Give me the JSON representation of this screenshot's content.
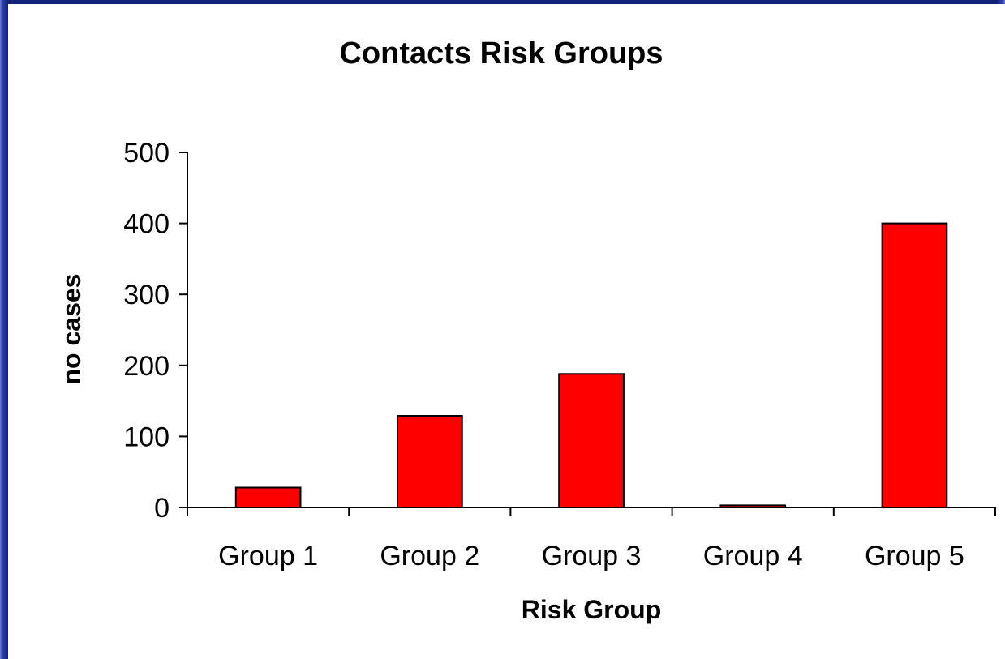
{
  "chart_data": {
    "type": "bar",
    "title": "Contacts Risk Groups",
    "xlabel": "Risk Group",
    "ylabel": "no cases",
    "categories": [
      "Group 1",
      "Group 2",
      "Group 3",
      "Group 4",
      "Group 5"
    ],
    "values": [
      28,
      129,
      188,
      3,
      400
    ],
    "ylim": [
      0,
      500
    ],
    "yticks": [
      0,
      100,
      200,
      300,
      400,
      500
    ],
    "grid": false,
    "bar_color": "#ff0000"
  }
}
